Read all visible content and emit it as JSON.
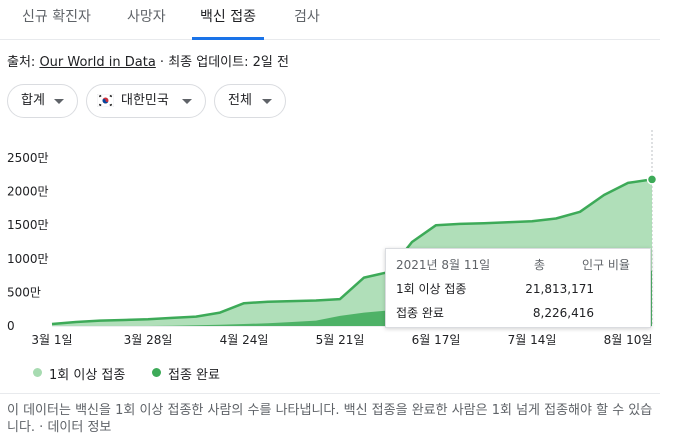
{
  "tabs": [
    "신규 확진자",
    "사망자",
    "백신 접종",
    "검사"
  ],
  "source": {
    "prefix": "출처: ",
    "link": "Our World in Data",
    "suffix": " · 최종 업데이트: 2일 전"
  },
  "chips": {
    "total": "합계",
    "country": "대한민국",
    "scope": "전체"
  },
  "colors": {
    "first_dose": "#a7dbb1",
    "fully_vaccinated": "#3daa58",
    "tab_accent": "#1a73e8"
  },
  "chart_data": {
    "type": "area",
    "x": [
      "3월 1일",
      "3월 8일",
      "3월 15일",
      "3월 22일",
      "3월 28일",
      "4월 4일",
      "4월 11일",
      "4월 18일",
      "4월 24일",
      "5월 1일",
      "5월 8일",
      "5월 15일",
      "5월 21일",
      "5월 28일",
      "6월 4일",
      "6월 10일",
      "6월 17일",
      "6월 24일",
      "7월 1일",
      "7월 8일",
      "7월 14일",
      "7월 21일",
      "7월 28일",
      "8월 4일",
      "8월 10일",
      "8월 11일"
    ],
    "series": [
      {
        "name": "1회 이상 접종",
        "values": [
          30,
          60,
          80,
          90,
          100,
          120,
          140,
          200,
          340,
          360,
          370,
          380,
          400,
          720,
          800,
          1250,
          1500,
          1520,
          1530,
          1545,
          1560,
          1600,
          1700,
          1950,
          2130,
          2181.3171
        ]
      },
      {
        "name": "접종 완료",
        "values": [
          0,
          0,
          0,
          0,
          0,
          5,
          10,
          20,
          30,
          40,
          60,
          80,
          150,
          200,
          230,
          260,
          300,
          400,
          500,
          600,
          650,
          700,
          750,
          800,
          820,
          822.6416
        ]
      }
    ],
    "x_ticks": [
      "3월 1일",
      "3월 28일",
      "4월 24일",
      "5월 21일",
      "6월 17일",
      "7월 14일",
      "8월 10일"
    ],
    "y_ticks": [
      "0",
      "500만",
      "1000만",
      "1500만",
      "2000만",
      "2500만"
    ],
    "ylim": [
      0,
      2500
    ],
    "legend": [
      "1회 이상 접종",
      "접종 완료"
    ]
  },
  "tooltip": {
    "date": "2021년 8월 11일",
    "col_total": "총",
    "col_ratio": "인구 비율",
    "row1_label": "1회 이상 접종",
    "row1_value": "21,813,171",
    "row2_label": "접종 완료",
    "row2_value": "8,226,416"
  },
  "note": "이 데이터는 백신을 1회 이상 접종한 사람의 수를 나타냅니다. 백신 접종을 완료한 사람은 1회 넘게 접종해야 할 수 있습니다. · 데이터 정보"
}
